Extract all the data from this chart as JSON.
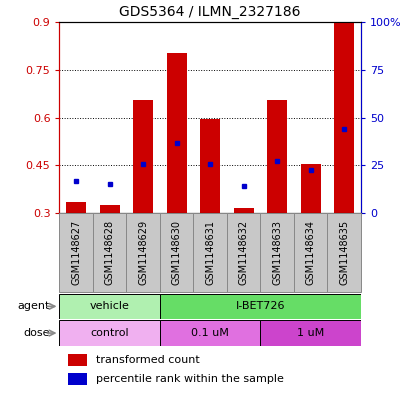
{
  "title": "GDS5364 / ILMN_2327186",
  "samples": [
    "GSM1148627",
    "GSM1148628",
    "GSM1148629",
    "GSM1148630",
    "GSM1148631",
    "GSM1148632",
    "GSM1148633",
    "GSM1148634",
    "GSM1148635"
  ],
  "bar_bottom": 0.3,
  "bar_top": [
    0.335,
    0.325,
    0.655,
    0.805,
    0.595,
    0.315,
    0.655,
    0.455,
    0.9
  ],
  "blue_dots": [
    0.4,
    0.39,
    0.455,
    0.52,
    0.455,
    0.385,
    0.465,
    0.435,
    0.565
  ],
  "ylim": [
    0.3,
    0.9
  ],
  "yticks_left": [
    0.3,
    0.45,
    0.6,
    0.75,
    0.9
  ],
  "yticks_right_vals": [
    0,
    25,
    50,
    75,
    100
  ],
  "bar_color": "#cc0000",
  "dot_color": "#0000cc",
  "bar_width": 0.6,
  "cell_bg": "#c8c8c8",
  "cell_edge": "#888888",
  "agent_vehicle_color": "#b0f0b0",
  "agent_ibet_color": "#66dd66",
  "dose_control_color": "#f0b0f0",
  "dose_01um_color": "#e070e0",
  "dose_1um_color": "#cc44cc",
  "legend_red": "transformed count",
  "legend_blue": "percentile rank within the sample",
  "label_fontsize": 7,
  "title_fontsize": 10
}
